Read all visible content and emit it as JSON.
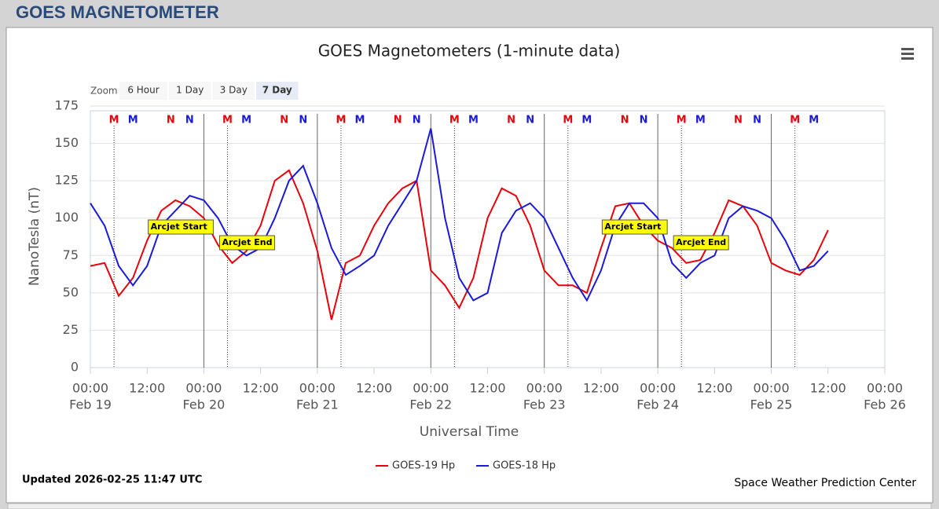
{
  "header": {
    "title": "GOES MAGNETOMETER"
  },
  "zoom": {
    "label": "Zoom",
    "buttons": [
      "6 Hour",
      "1 Day",
      "3 Day",
      "7 Day"
    ],
    "selected": "7 Day"
  },
  "footer": {
    "updated": "Updated 2026-02-25 11:47 UTC",
    "credit": "Space Weather Prediction Center"
  },
  "chart_data": {
    "type": "line",
    "title": "GOES Magnetometers (1-minute data)",
    "x_label": "Universal Time",
    "y_label": "NanoTesla (nT)",
    "xlim": [
      "Feb 19 00:00",
      "Feb 26 00:00"
    ],
    "xticks": [
      {
        "value": "Feb 19 00:00",
        "label": "00:00",
        "sublabel": "Feb 19"
      },
      {
        "value": "Feb 19 12:00",
        "label": "12:00"
      },
      {
        "value": "Feb 20 00:00",
        "label": "00:00",
        "sublabel": "Feb 20"
      },
      {
        "value": "Feb 20 12:00",
        "label": "12:00"
      },
      {
        "value": "Feb 21 00:00",
        "label": "00:00",
        "sublabel": "Feb 21"
      },
      {
        "value": "Feb 21 12:00",
        "label": "12:00"
      },
      {
        "value": "Feb 22 00:00",
        "label": "00:00",
        "sublabel": "Feb 22"
      },
      {
        "value": "Feb 22 12:00",
        "label": "12:00"
      },
      {
        "value": "Feb 23 00:00",
        "label": "00:00",
        "sublabel": "Feb 23"
      },
      {
        "value": "Feb 23 12:00",
        "label": "12:00"
      },
      {
        "value": "Feb 24 00:00",
        "label": "00:00",
        "sublabel": "Feb 24"
      },
      {
        "value": "Feb 24 12:00",
        "label": "12:00"
      },
      {
        "value": "Feb 25 00:00",
        "label": "00:00",
        "sublabel": "Feb 25"
      },
      {
        "value": "Feb 25 12:00",
        "label": "12:00"
      },
      {
        "value": "Feb 26 00:00",
        "label": "00:00",
        "sublabel": "Feb 26"
      }
    ],
    "ylim": [
      0,
      175
    ],
    "yticks": [
      0,
      25,
      50,
      75,
      100,
      125,
      150,
      175
    ],
    "grid": true,
    "x": [
      "Feb 19 00:00",
      "Feb 19 03:00",
      "Feb 19 06:00",
      "Feb 19 09:00",
      "Feb 19 12:00",
      "Feb 19 15:00",
      "Feb 19 18:00",
      "Feb 19 21:00",
      "Feb 20 00:00",
      "Feb 20 03:00",
      "Feb 20 06:00",
      "Feb 20 09:00",
      "Feb 20 12:00",
      "Feb 20 15:00",
      "Feb 20 18:00",
      "Feb 20 21:00",
      "Feb 21 00:00",
      "Feb 21 03:00",
      "Feb 21 06:00",
      "Feb 21 09:00",
      "Feb 21 12:00",
      "Feb 21 15:00",
      "Feb 21 18:00",
      "Feb 21 21:00",
      "Feb 22 00:00",
      "Feb 22 03:00",
      "Feb 22 06:00",
      "Feb 22 09:00",
      "Feb 22 12:00",
      "Feb 22 15:00",
      "Feb 22 18:00",
      "Feb 22 21:00",
      "Feb 23 00:00",
      "Feb 23 03:00",
      "Feb 23 06:00",
      "Feb 23 09:00",
      "Feb 23 12:00",
      "Feb 23 15:00",
      "Feb 23 18:00",
      "Feb 23 21:00",
      "Feb 24 00:00",
      "Feb 24 03:00",
      "Feb 24 06:00",
      "Feb 24 09:00",
      "Feb 24 12:00",
      "Feb 24 15:00",
      "Feb 24 18:00",
      "Feb 24 21:00",
      "Feb 25 00:00",
      "Feb 25 03:00",
      "Feb 25 06:00",
      "Feb 25 09:00",
      "Feb 25 12:00"
    ],
    "series": [
      {
        "name": "GOES-19 Hp",
        "color": "#e8000b",
        "values": [
          68,
          70,
          48,
          60,
          85,
          105,
          112,
          108,
          100,
          82,
          70,
          78,
          95,
          125,
          132,
          110,
          78,
          32,
          70,
          75,
          95,
          110,
          120,
          125,
          65,
          55,
          40,
          60,
          100,
          120,
          115,
          95,
          65,
          55,
          55,
          50,
          80,
          108,
          110,
          95,
          85,
          80,
          70,
          72,
          90,
          112,
          108,
          95,
          70,
          65,
          62,
          72,
          92
        ]
      },
      {
        "name": "GOES-18 Hp",
        "color": "#1a1adb",
        "values": [
          110,
          95,
          68,
          55,
          68,
          95,
          105,
          115,
          112,
          100,
          82,
          75,
          80,
          100,
          125,
          135,
          110,
          80,
          62,
          68,
          75,
          95,
          110,
          125,
          160,
          100,
          60,
          45,
          50,
          90,
          105,
          110,
          100,
          80,
          60,
          45,
          65,
          95,
          110,
          110,
          100,
          70,
          60,
          70,
          75,
          100,
          108,
          105,
          100,
          85,
          65,
          68,
          78
        ]
      }
    ],
    "markers": [
      {
        "label": "M",
        "color": "#e8000b",
        "x": "Feb 19 05:00",
        "line": "dotted"
      },
      {
        "label": "M",
        "color": "#1a1adb",
        "x": "Feb 19 09:00"
      },
      {
        "label": "N",
        "color": "#e8000b",
        "x": "Feb 19 17:00"
      },
      {
        "label": "N",
        "color": "#1a1adb",
        "x": "Feb 19 21:00"
      },
      {
        "label": "M",
        "color": "#e8000b",
        "x": "Feb 20 05:00",
        "line": "dotted"
      },
      {
        "label": "M",
        "color": "#1a1adb",
        "x": "Feb 20 09:00"
      },
      {
        "label": "N",
        "color": "#e8000b",
        "x": "Feb 20 17:00"
      },
      {
        "label": "N",
        "color": "#1a1adb",
        "x": "Feb 20 21:00"
      },
      {
        "label": "M",
        "color": "#e8000b",
        "x": "Feb 21 05:00",
        "line": "dotted"
      },
      {
        "label": "M",
        "color": "#1a1adb",
        "x": "Feb 21 09:00"
      },
      {
        "label": "N",
        "color": "#e8000b",
        "x": "Feb 21 17:00"
      },
      {
        "label": "N",
        "color": "#1a1adb",
        "x": "Feb 21 21:00"
      },
      {
        "label": "M",
        "color": "#e8000b",
        "x": "Feb 22 05:00",
        "line": "dotted"
      },
      {
        "label": "M",
        "color": "#1a1adb",
        "x": "Feb 22 09:00"
      },
      {
        "label": "N",
        "color": "#e8000b",
        "x": "Feb 22 17:00"
      },
      {
        "label": "N",
        "color": "#1a1adb",
        "x": "Feb 22 21:00"
      },
      {
        "label": "M",
        "color": "#e8000b",
        "x": "Feb 23 05:00",
        "line": "dotted"
      },
      {
        "label": "M",
        "color": "#1a1adb",
        "x": "Feb 23 09:00"
      },
      {
        "label": "N",
        "color": "#e8000b",
        "x": "Feb 23 17:00"
      },
      {
        "label": "N",
        "color": "#1a1adb",
        "x": "Feb 23 21:00"
      },
      {
        "label": "M",
        "color": "#e8000b",
        "x": "Feb 24 05:00",
        "line": "dotted"
      },
      {
        "label": "M",
        "color": "#1a1adb",
        "x": "Feb 24 09:00"
      },
      {
        "label": "N",
        "color": "#e8000b",
        "x": "Feb 24 17:00"
      },
      {
        "label": "N",
        "color": "#1a1adb",
        "x": "Feb 24 21:00"
      },
      {
        "label": "M",
        "color": "#e8000b",
        "x": "Feb 25 05:00",
        "line": "dotted"
      },
      {
        "label": "M",
        "color": "#1a1adb",
        "x": "Feb 25 09:00"
      }
    ],
    "annotations": [
      {
        "text": "Arcjet Start",
        "x": "Feb 20 01:00"
      },
      {
        "text": "Arcjet End",
        "x": "Feb 20 02:00"
      },
      {
        "text": "Arcjet Start",
        "x": "Feb 24 01:00"
      },
      {
        "text": "Arcjet End",
        "x": "Feb 24 02:00"
      }
    ]
  }
}
